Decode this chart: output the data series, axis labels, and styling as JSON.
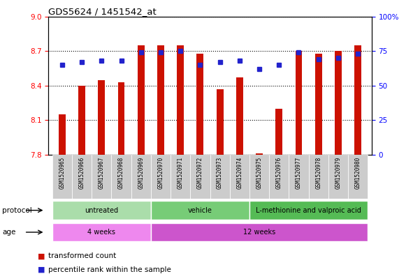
{
  "title": "GDS5624 / 1451542_at",
  "samples": [
    "GSM1520965",
    "GSM1520966",
    "GSM1520967",
    "GSM1520968",
    "GSM1520969",
    "GSM1520970",
    "GSM1520971",
    "GSM1520972",
    "GSM1520973",
    "GSM1520974",
    "GSM1520975",
    "GSM1520976",
    "GSM1520977",
    "GSM1520978",
    "GSM1520979",
    "GSM1520980"
  ],
  "bar_values": [
    8.15,
    8.4,
    8.45,
    8.43,
    8.75,
    8.75,
    8.75,
    8.68,
    8.37,
    8.47,
    7.81,
    8.2,
    8.7,
    8.68,
    8.7,
    8.75
  ],
  "percentile_values": [
    65,
    67,
    68,
    68,
    74,
    74,
    75,
    65,
    67,
    68,
    62,
    65,
    74,
    69,
    70,
    73
  ],
  "bar_bottom": 7.8,
  "ylim_left": [
    7.8,
    9.0
  ],
  "ylim_right": [
    0,
    100
  ],
  "yticks_left": [
    7.8,
    8.1,
    8.4,
    8.7,
    9.0
  ],
  "yticks_right": [
    0,
    25,
    50,
    75,
    100
  ],
  "ytick_labels_right": [
    "0",
    "25",
    "50",
    "75",
    "100%"
  ],
  "bar_color": "#CC1100",
  "percentile_color": "#2222CC",
  "protocol_groups": [
    {
      "label": "untreated",
      "start": 0,
      "end": 4,
      "color": "#AADDAA"
    },
    {
      "label": "vehicle",
      "start": 5,
      "end": 9,
      "color": "#77CC77"
    },
    {
      "label": "L-methionine and valproic acid",
      "start": 10,
      "end": 15,
      "color": "#55BB55"
    }
  ],
  "age_groups": [
    {
      "label": "4 weeks",
      "start": 0,
      "end": 4,
      "color": "#EE88EE"
    },
    {
      "label": "12 weeks",
      "start": 5,
      "end": 15,
      "color": "#CC55CC"
    }
  ],
  "legend_items": [
    {
      "label": "transformed count",
      "color": "#CC1100"
    },
    {
      "label": "percentile rank within the sample",
      "color": "#2222CC"
    }
  ],
  "protocol_label": "protocol",
  "age_label": "age",
  "bar_width": 0.35
}
